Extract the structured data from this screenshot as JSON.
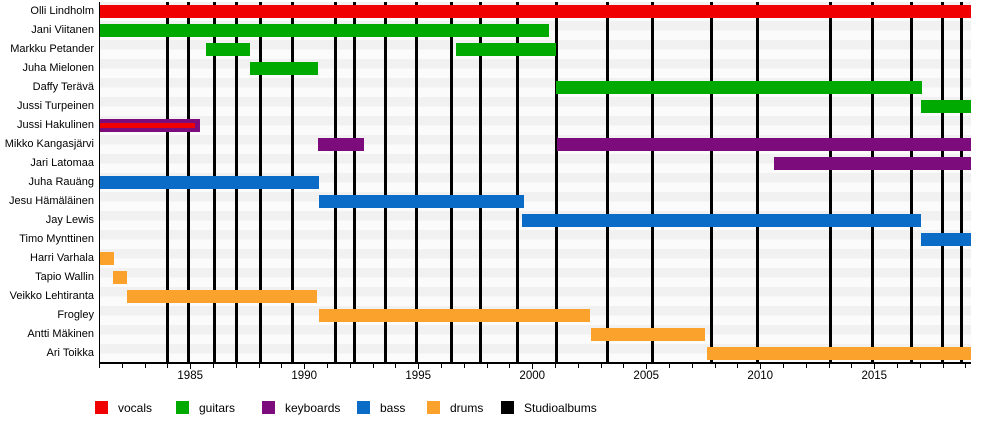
{
  "chart_data": {
    "type": "timeline",
    "description": "Band member timeline with studio album release markers",
    "x_axis": {
      "start": 1981,
      "end": 2019.2,
      "major_ticks": [
        1985,
        1990,
        1995,
        2000,
        2005,
        2010,
        2015
      ],
      "minor_tick_interval": 1
    },
    "colors": {
      "vocals": "#f00000",
      "guitars": "#00aa00",
      "keyboards": "#7c0b7c",
      "bass": "#0b6cc7",
      "drums": "#faa22b",
      "albums": "#000000"
    },
    "legend": [
      {
        "label": "vocals",
        "color": "#f00000"
      },
      {
        "label": "guitars",
        "color": "#00aa00"
      },
      {
        "label": "keyboards",
        "color": "#7c0b7c"
      },
      {
        "label": "bass",
        "color": "#0b6cc7"
      },
      {
        "label": "drums",
        "color": "#faa22b"
      },
      {
        "label": "Studioalbums",
        "color": "#000000"
      }
    ],
    "albums": [
      1983.95,
      1984.9,
      1986.0,
      1987.0,
      1988.05,
      1989.45,
      1991.35,
      1992.15,
      1993.5,
      1994.9,
      1996.4,
      1997.7,
      1999.3,
      2001.0,
      2003.25,
      2005.25,
      2007.8,
      2009.85,
      2013.05,
      2014.9,
      2016.6,
      2017.95,
      2018.8
    ],
    "members": [
      {
        "name": "Olli Lindholm",
        "bars": [
          {
            "role": "vocals",
            "start": 1981,
            "end": 2019.2
          }
        ]
      },
      {
        "name": "Jani Viitanen",
        "bars": [
          {
            "role": "guitars",
            "start": 1981,
            "end": 2000.7
          }
        ]
      },
      {
        "name": "Markku Petander",
        "bars": [
          {
            "role": "guitars",
            "start": 1985.65,
            "end": 1987.6
          },
          {
            "role": "guitars",
            "start": 1996.6,
            "end": 2001.0
          }
        ]
      },
      {
        "name": "Juha Mielonen",
        "bars": [
          {
            "role": "guitars",
            "start": 1987.6,
            "end": 1990.55
          }
        ]
      },
      {
        "name": "Daffy Terävä",
        "bars": [
          {
            "role": "guitars",
            "start": 2001.0,
            "end": 2017.05
          }
        ]
      },
      {
        "name": "Jussi Turpeinen",
        "bars": [
          {
            "role": "guitars",
            "start": 2017.0,
            "end": 2019.2
          }
        ]
      },
      {
        "name": "Jussi Hakulinen",
        "bars": [
          {
            "role": "keyboards",
            "start": 1981,
            "end": 1985.4
          },
          {
            "role": "vocals",
            "start": 1981,
            "end": 1985.15,
            "inner": true
          }
        ]
      },
      {
        "name": "Mikko Kangasjärvi",
        "bars": [
          {
            "role": "keyboards",
            "start": 1990.55,
            "end": 1992.6
          },
          {
            "role": "keyboards",
            "start": 2001.05,
            "end": 2019.2
          }
        ]
      },
      {
        "name": "Jari Latomaa",
        "bars": [
          {
            "role": "keyboards",
            "start": 2010.55,
            "end": 2019.2
          }
        ]
      },
      {
        "name": "Juha Rauäng",
        "bars": [
          {
            "role": "bass",
            "start": 1981,
            "end": 1990.6
          }
        ]
      },
      {
        "name": "Jesu Hämäläinen",
        "bars": [
          {
            "role": "bass",
            "start": 1990.6,
            "end": 1999.6
          }
        ]
      },
      {
        "name": "Jay Lewis",
        "bars": [
          {
            "role": "bass",
            "start": 1999.5,
            "end": 2017.0
          }
        ]
      },
      {
        "name": "Timo Mynttinen",
        "bars": [
          {
            "role": "bass",
            "start": 2017.0,
            "end": 2019.2
          }
        ]
      },
      {
        "name": "Harri Varhala",
        "bars": [
          {
            "role": "drums",
            "start": 1981,
            "end": 1981.6
          }
        ]
      },
      {
        "name": "Tapio Wallin",
        "bars": [
          {
            "role": "drums",
            "start": 1981.55,
            "end": 1982.2
          }
        ]
      },
      {
        "name": "Veikko Lehtiranta",
        "bars": [
          {
            "role": "drums",
            "start": 1982.2,
            "end": 1990.5
          }
        ]
      },
      {
        "name": "Frogley",
        "bars": [
          {
            "role": "drums",
            "start": 1990.6,
            "end": 2002.5
          }
        ]
      },
      {
        "name": "Antti Mäkinen",
        "bars": [
          {
            "role": "drums",
            "start": 2002.55,
            "end": 2007.55
          }
        ]
      },
      {
        "name": "Ari Toikka",
        "bars": [
          {
            "role": "drums",
            "start": 2007.6,
            "end": 2019.2
          }
        ]
      }
    ]
  }
}
